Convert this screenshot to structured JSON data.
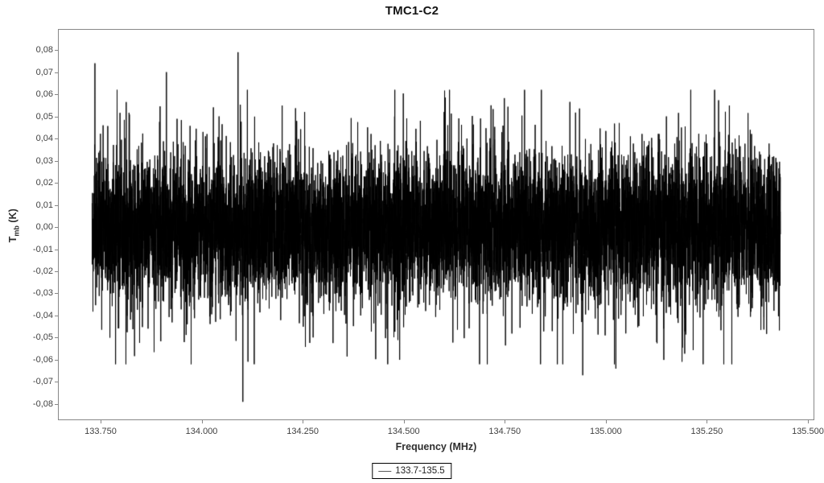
{
  "figure": {
    "background": "#ffffff",
    "axis_border_color": "#878787",
    "tick_label_color": "#3f3f3f"
  },
  "chart_data": {
    "type": "line",
    "title": "TMC1-C2",
    "xlabel": "Frequency (MHz)",
    "ylabel": {
      "main": "T",
      "sub": "mb",
      "rest": " (K)"
    },
    "grid": false,
    "legend": {
      "position": "bottom-center",
      "entries": [
        {
          "label": "133.7-135.5",
          "color": "#595959"
        }
      ]
    },
    "xlim": [
      133.6445,
      135.516
    ],
    "ylim": [
      -0.0873,
      0.0895
    ],
    "x_ticks": [
      {
        "value": 133.75,
        "label": "133.750"
      },
      {
        "value": 134.0,
        "label": "134.000"
      },
      {
        "value": 134.25,
        "label": "134.250"
      },
      {
        "value": 134.5,
        "label": "134.500"
      },
      {
        "value": 134.75,
        "label": "134.750"
      },
      {
        "value": 135.0,
        "label": "135.000"
      },
      {
        "value": 135.25,
        "label": "135.250"
      },
      {
        "value": 135.5,
        "label": "135.500"
      }
    ],
    "y_ticks": [
      {
        "value": 0.08,
        "label": "0,08"
      },
      {
        "value": 0.07,
        "label": "0,07"
      },
      {
        "value": 0.06,
        "label": "0,06"
      },
      {
        "value": 0.05,
        "label": "0,05"
      },
      {
        "value": 0.04,
        "label": "0,04"
      },
      {
        "value": 0.03,
        "label": "0,03"
      },
      {
        "value": 0.02,
        "label": "0,02"
      },
      {
        "value": 0.01,
        "label": "0,01"
      },
      {
        "value": 0.0,
        "label": "0,00"
      },
      {
        "value": -0.01,
        "label": "-0,01"
      },
      {
        "value": -0.02,
        "label": "-0,02"
      },
      {
        "value": -0.03,
        "label": "-0,03"
      },
      {
        "value": -0.04,
        "label": "-0,04"
      },
      {
        "value": -0.05,
        "label": "-0,05"
      },
      {
        "value": -0.06,
        "label": "-0,06"
      },
      {
        "value": -0.07,
        "label": "-0,07"
      },
      {
        "value": -0.08,
        "label": "-0,08"
      }
    ],
    "series": [
      {
        "name": "133.7-135.5",
        "color": "#000000",
        "line_width": 1,
        "x_start": 133.729,
        "x_end": 135.432,
        "n_points": 9000,
        "noise_sigma": 0.016,
        "heavy_tail_fraction": 0.07,
        "heavy_tail_sigma": 0.028,
        "noise_clamp": 0.062,
        "seed": 1337,
        "spikes": [
          {
            "x": 133.736,
            "y": 0.074
          },
          {
            "x": 133.798,
            "y": 0.0516
          },
          {
            "x": 133.913,
            "y": 0.07
          },
          {
            "x": 134.09,
            "y": 0.079
          },
          {
            "x": 134.102,
            "y": -0.079
          },
          {
            "x": 133.773,
            "y": -0.05
          },
          {
            "x": 133.957,
            "y": -0.052
          },
          {
            "x": 134.255,
            "y": 0.052
          },
          {
            "x": 134.36,
            "y": -0.0585
          },
          {
            "x": 134.49,
            "y": -0.06
          },
          {
            "x": 134.6,
            "y": 0.052
          },
          {
            "x": 134.716,
            "y": 0.055
          },
          {
            "x": 134.943,
            "y": -0.067
          },
          {
            "x": 135.025,
            "y": -0.064
          },
          {
            "x": 135.15,
            "y": 0.05
          },
          {
            "x": 135.352,
            "y": 0.0515
          }
        ]
      }
    ]
  }
}
